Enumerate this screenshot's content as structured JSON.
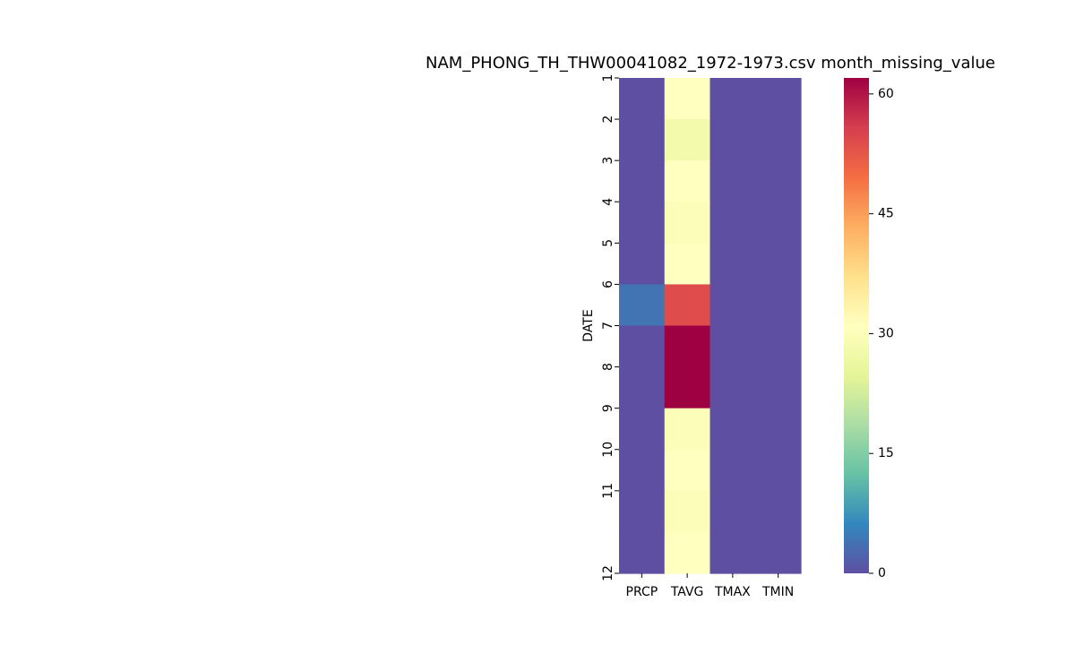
{
  "chart_data": {
    "type": "heatmap",
    "title": "NAM_PHONG_TH_THW00041082_1972-1973.csv month_missing_value",
    "xlabel": "",
    "ylabel": "DATE",
    "x_categories": [
      "PRCP",
      "TAVG",
      "TMAX",
      "TMIN"
    ],
    "y_categories": [
      "1",
      "2",
      "3",
      "4",
      "5",
      "6",
      "7",
      "8",
      "9",
      "10",
      "11",
      "12"
    ],
    "values": [
      [
        0,
        31,
        0,
        0
      ],
      [
        0,
        28,
        0,
        0
      ],
      [
        0,
        31,
        0,
        0
      ],
      [
        0,
        30,
        0,
        0
      ],
      [
        0,
        31,
        0,
        0
      ],
      [
        4,
        54,
        0,
        0
      ],
      [
        0,
        62,
        0,
        0
      ],
      [
        0,
        62,
        0,
        0
      ],
      [
        0,
        30,
        0,
        0
      ],
      [
        0,
        31,
        0,
        0
      ],
      [
        0,
        30,
        0,
        0
      ],
      [
        0,
        31,
        0,
        0
      ]
    ],
    "colormap": "Spectral_r",
    "colorbar": {
      "min": 0,
      "max": 62,
      "ticks": [
        0,
        15,
        30,
        45,
        60
      ]
    },
    "grid": false
  }
}
